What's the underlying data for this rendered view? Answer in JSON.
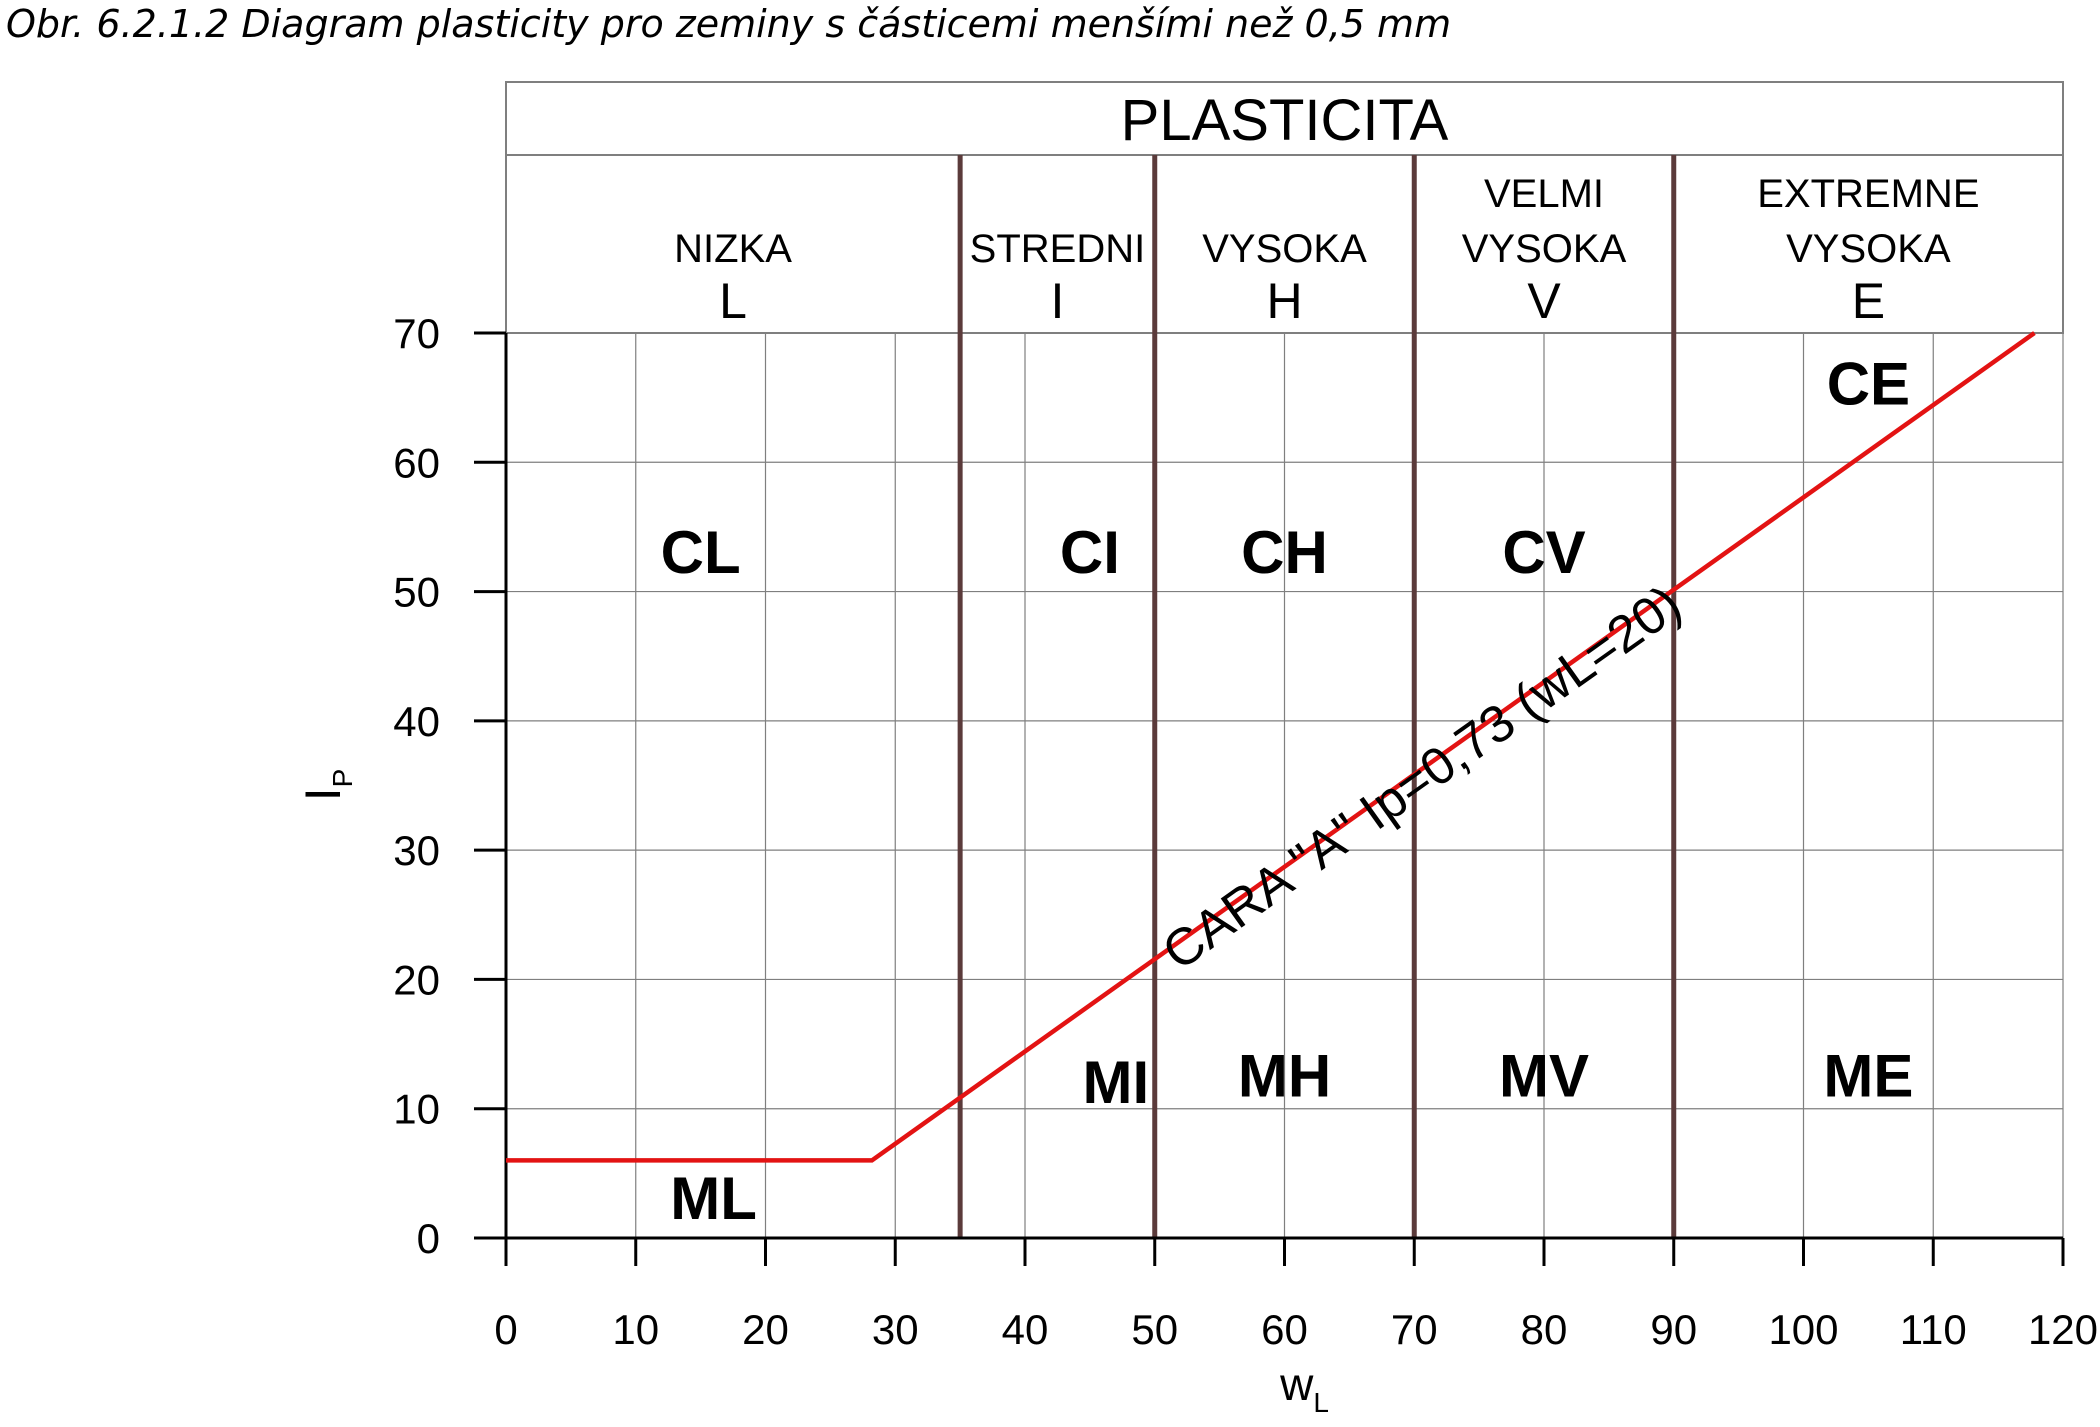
{
  "caption": "Obr. 6.2.1.2  Diagram plasticity pro zeminy s částicemi menšími než 0,5 mm",
  "colors": {
    "a_line": "#e31313",
    "boundary": "#5b3b3b",
    "grid": "#7f7f7f",
    "text": "#000000"
  },
  "chart_data": {
    "type": "line",
    "title": "PLASTICITA",
    "xlabel": "w",
    "xlabel_sub": "L",
    "ylabel": "I",
    "ylabel_sub": "P",
    "xlim": [
      0,
      120
    ],
    "ylim": [
      0,
      70
    ],
    "x_ticks": [
      "0",
      "10",
      "20",
      "30",
      "40",
      "50",
      "60",
      "70",
      "80",
      "90",
      "100",
      "110",
      "120"
    ],
    "y_ticks": [
      "0",
      "10",
      "20",
      "30",
      "40",
      "50",
      "60",
      "70"
    ],
    "grid": true,
    "plasticity_boundaries_wL": [
      35,
      50,
      70,
      90
    ],
    "plasticity_classes": [
      {
        "name_lines": [
          "NIZKA"
        ],
        "symbol": "L",
        "from": 0,
        "to": 35
      },
      {
        "name_lines": [
          "STREDNI"
        ],
        "symbol": "I",
        "from": 35,
        "to": 50
      },
      {
        "name_lines": [
          "VYSOKA"
        ],
        "symbol": "H",
        "from": 50,
        "to": 70
      },
      {
        "name_lines": [
          "VELMI",
          "VYSOKA"
        ],
        "symbol": "V",
        "from": 70,
        "to": 90
      },
      {
        "name_lines": [
          "EXTREMNE",
          "VYSOKA"
        ],
        "symbol": "E",
        "from": 90,
        "to": 120
      }
    ],
    "series": [
      {
        "label": "CARA \"A\" Ip=0,73 (wL=20)",
        "points": [
          [
            0,
            6
          ],
          [
            28.2,
            6
          ],
          [
            117.8,
            70
          ]
        ]
      }
    ],
    "zone_labels": [
      {
        "text": "CL",
        "x": 15,
        "y": 53
      },
      {
        "text": "CI",
        "x": 45,
        "y": 53
      },
      {
        "text": "CH",
        "x": 60,
        "y": 53
      },
      {
        "text": "CV",
        "x": 80,
        "y": 53
      },
      {
        "text": "CE",
        "x": 105,
        "y": 66
      },
      {
        "text": "ML",
        "x": 16,
        "y": 3
      },
      {
        "text": "MI",
        "x": 47,
        "y": 12
      },
      {
        "text": "MH",
        "x": 60,
        "y": 12.5
      },
      {
        "text": "MV",
        "x": 80,
        "y": 12.5
      },
      {
        "text": "ME",
        "x": 105,
        "y": 12.5
      }
    ]
  }
}
